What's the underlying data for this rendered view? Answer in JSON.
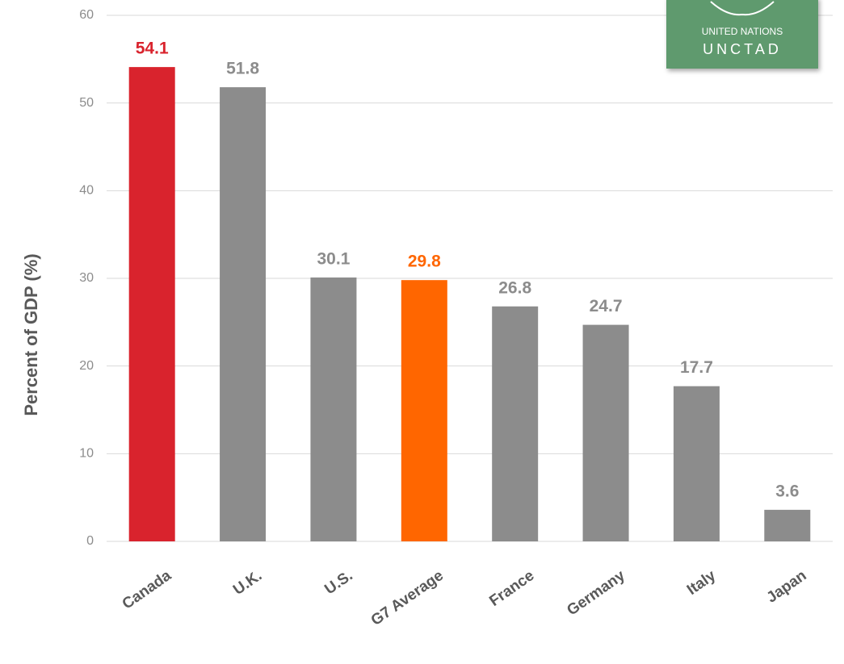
{
  "chart_data": {
    "type": "bar",
    "y_label": "Percent of GDP (%)",
    "categories": [
      "Canada",
      "U.K.",
      "U.S.",
      "G7 Average",
      "France",
      "Germany",
      "Italy",
      "Japan"
    ],
    "values": [
      54.1,
      51.8,
      30.1,
      29.8,
      26.8,
      24.7,
      17.7,
      3.6
    ],
    "colors": [
      "#d9232d",
      "#8c8c8c",
      "#8c8c8c",
      "#ff6600",
      "#8c8c8c",
      "#8c8c8c",
      "#8c8c8c",
      "#8c8c8c"
    ],
    "ylim": [
      0,
      60
    ],
    "yticks": [
      0,
      10,
      20,
      30,
      40,
      50,
      60
    ],
    "grid": true,
    "logo_text": [
      "UNITED NATIONS",
      "UNCTAD"
    ]
  }
}
